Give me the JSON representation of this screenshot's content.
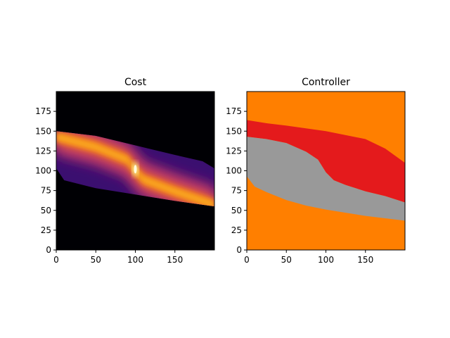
{
  "chart_data": [
    {
      "type": "heatmap",
      "title": "Cost",
      "colormap": "inferno",
      "xlim": [
        0,
        200
      ],
      "ylim": [
        0,
        200
      ],
      "xticks": [
        "0",
        "50",
        "100",
        "150"
      ],
      "yticks": [
        "0",
        "25",
        "50",
        "75",
        "100",
        "125",
        "150",
        "175"
      ],
      "xtick_values": [
        0,
        50,
        100,
        150
      ],
      "ytick_values": [
        0,
        25,
        50,
        75,
        100,
        125,
        150,
        175
      ],
      "grid": false,
      "features": {
        "region_upper_boundary": [
          [
            0,
            150
          ],
          [
            50,
            144
          ],
          [
            100,
            132
          ],
          [
            150,
            120
          ],
          [
            185,
            112
          ],
          [
            200,
            103
          ]
        ],
        "region_lower_boundary": [
          [
            0,
            103
          ],
          [
            10,
            88
          ],
          [
            50,
            78
          ],
          [
            100,
            70
          ],
          [
            150,
            62
          ],
          [
            200,
            55
          ]
        ],
        "bright_curve": [
          [
            0,
            143
          ],
          [
            50,
            130
          ],
          [
            90,
            114
          ],
          [
            100,
            100
          ],
          [
            110,
            89
          ],
          [
            150,
            74
          ],
          [
            200,
            57
          ]
        ],
        "peak": [
          100,
          102
        ],
        "outside_value": "black"
      }
    },
    {
      "type": "heatmap",
      "title": "Controller",
      "xlim": [
        0,
        200
      ],
      "ylim": [
        0,
        200
      ],
      "xticks": [
        "0",
        "50",
        "100",
        "150"
      ],
      "yticks": [
        "0",
        "25",
        "50",
        "75",
        "100",
        "125",
        "150",
        "175"
      ],
      "xtick_values": [
        0,
        50,
        100,
        150
      ],
      "ytick_values": [
        0,
        25,
        50,
        75,
        100,
        125,
        150,
        175
      ],
      "grid": false,
      "colors": {
        "background": "#ff7f00",
        "upper": "#e41a1c",
        "lower": "#999999"
      },
      "regions": {
        "red_top": [
          [
            0,
            164
          ],
          [
            25,
            160
          ],
          [
            50,
            157
          ],
          [
            100,
            150
          ],
          [
            150,
            140
          ],
          [
            175,
            128
          ],
          [
            200,
            110
          ]
        ],
        "mid_boundary": [
          [
            0,
            143
          ],
          [
            25,
            140
          ],
          [
            50,
            135
          ],
          [
            75,
            124
          ],
          [
            90,
            114
          ],
          [
            100,
            98
          ],
          [
            110,
            88
          ],
          [
            125,
            82
          ],
          [
            150,
            74
          ],
          [
            175,
            68
          ],
          [
            200,
            60
          ]
        ],
        "gray_bottom": [
          [
            0,
            93
          ],
          [
            10,
            80
          ],
          [
            25,
            73
          ],
          [
            50,
            63
          ],
          [
            75,
            56
          ],
          [
            100,
            51
          ],
          [
            125,
            47
          ],
          [
            150,
            43
          ],
          [
            175,
            40
          ],
          [
            200,
            37
          ]
        ]
      }
    }
  ]
}
